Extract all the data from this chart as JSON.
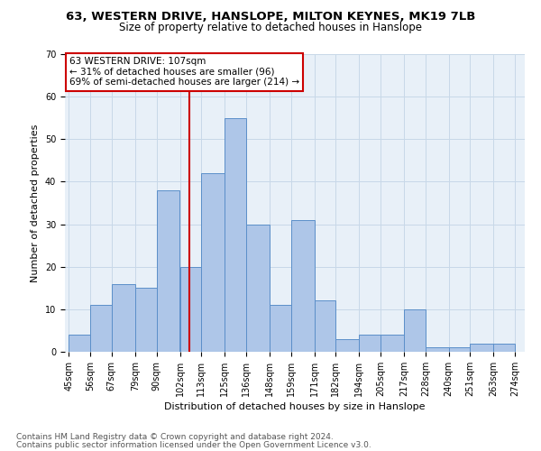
{
  "title1": "63, WESTERN DRIVE, HANSLOPE, MILTON KEYNES, MK19 7LB",
  "title2": "Size of property relative to detached houses in Hanslope",
  "xlabel": "Distribution of detached houses by size in Hanslope",
  "ylabel": "Number of detached properties",
  "footnote1": "Contains HM Land Registry data © Crown copyright and database right 2024.",
  "footnote2": "Contains public sector information licensed under the Open Government Licence v3.0.",
  "annotation_line1": "63 WESTERN DRIVE: 107sqm",
  "annotation_line2": "← 31% of detached houses are smaller (96)",
  "annotation_line3": "69% of semi-detached houses are larger (214) →",
  "property_size": 107,
  "bar_edges": [
    45,
    56,
    67,
    79,
    90,
    102,
    113,
    125,
    136,
    148,
    159,
    171,
    182,
    194,
    205,
    217,
    228,
    240,
    251,
    263,
    274
  ],
  "bar_heights": [
    4,
    11,
    16,
    15,
    38,
    20,
    42,
    55,
    30,
    11,
    31,
    12,
    3,
    4,
    4,
    10,
    1,
    1,
    2,
    2
  ],
  "bar_color": "#aec6e8",
  "bar_edge_color": "#5b8fc9",
  "vline_color": "#cc0000",
  "vline_x": 107,
  "annotation_box_color": "#cc0000",
  "annotation_bg": "#ffffff",
  "ylim": [
    0,
    70
  ],
  "xlim": [
    45,
    274
  ],
  "yticks": [
    0,
    10,
    20,
    30,
    40,
    50,
    60,
    70
  ],
  "grid_color": "#c8d8e8",
  "bg_color": "#e8f0f8",
  "title1_fontsize": 9.5,
  "title2_fontsize": 8.5,
  "axis_label_fontsize": 8,
  "tick_fontsize": 7,
  "footnote_fontsize": 6.5
}
